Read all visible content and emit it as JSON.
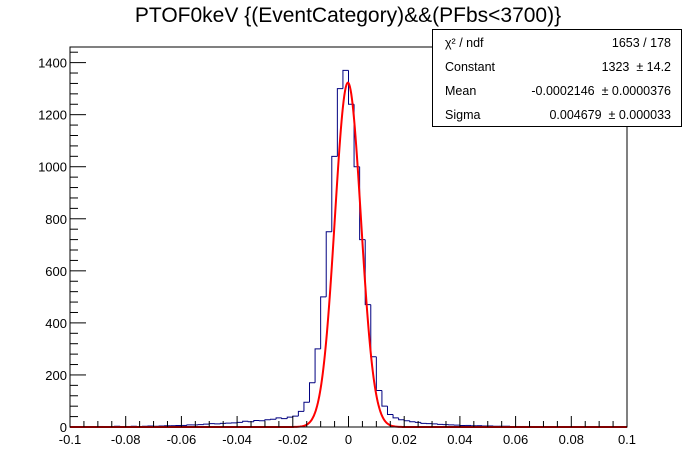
{
  "chart_data": {
    "type": "histogram",
    "title": "PTOF0keV {(EventCategory)&&(PFbs<3700)}",
    "xlim": [
      -0.1,
      0.1
    ],
    "ylim": [
      0,
      1460
    ],
    "x_ticks": [
      "-0.1",
      "-0.08",
      "-0.06",
      "-0.04",
      "-0.02",
      "0",
      "0.02",
      "0.04",
      "0.06",
      "0.08",
      "0.1"
    ],
    "y_ticks": [
      "0",
      "200",
      "400",
      "600",
      "800",
      "1000",
      "1200",
      "1400"
    ],
    "histogram": {
      "color": "#000080",
      "bin_width": 0.002,
      "bin_low_edges": [
        -0.1,
        -0.098,
        -0.096,
        -0.094,
        -0.092,
        -0.09,
        -0.088,
        -0.086,
        -0.084,
        -0.082,
        -0.08,
        -0.078,
        -0.076,
        -0.074,
        -0.072,
        -0.07,
        -0.068,
        -0.066,
        -0.064,
        -0.062,
        -0.06,
        -0.058,
        -0.056,
        -0.054,
        -0.052,
        -0.05,
        -0.048,
        -0.046,
        -0.044,
        -0.042,
        -0.04,
        -0.038,
        -0.036,
        -0.034,
        -0.032,
        -0.03,
        -0.028,
        -0.026,
        -0.024,
        -0.022,
        -0.02,
        -0.018,
        -0.016,
        -0.014,
        -0.012,
        -0.01,
        -0.008,
        -0.006,
        -0.004,
        -0.002,
        0,
        0.002,
        0.004,
        0.006,
        0.008,
        0.01,
        0.012,
        0.014,
        0.016,
        0.018,
        0.02,
        0.022,
        0.024,
        0.026,
        0.028,
        0.03,
        0.032,
        0.034,
        0.036,
        0.038,
        0.04,
        0.042,
        0.044,
        0.046,
        0.048,
        0.05,
        0.052,
        0.054,
        0.056,
        0.058,
        0.06,
        0.062,
        0.064,
        0.066,
        0.068,
        0.07,
        0.072,
        0.074,
        0.076,
        0.078,
        0.08,
        0.082,
        0.084,
        0.086,
        0.088,
        0.09,
        0.092,
        0.094,
        0.096,
        0.098
      ],
      "counts": [
        2,
        1,
        2,
        1,
        2,
        2,
        1,
        2,
        3,
        2,
        2,
        3,
        2,
        3,
        4,
        3,
        4,
        5,
        5,
        6,
        6,
        8,
        8,
        9,
        11,
        13,
        12,
        14,
        15,
        16,
        18,
        22,
        20,
        25,
        24,
        28,
        30,
        35,
        32,
        38,
        42,
        60,
        95,
        170,
        300,
        500,
        750,
        1040,
        1300,
        1370,
        1240,
        1000,
        720,
        470,
        270,
        140,
        80,
        48,
        35,
        28,
        24,
        20,
        18,
        14,
        13,
        12,
        10,
        9,
        8,
        7,
        6,
        6,
        5,
        5,
        4,
        4,
        3,
        3,
        3,
        2,
        2,
        2,
        2,
        1,
        2,
        1,
        1,
        2,
        1,
        1,
        1,
        1,
        2,
        1,
        1,
        1,
        1,
        1,
        1,
        1
      ]
    },
    "fit": {
      "color": "#ff0000",
      "constant": 1323,
      "mean": -0.0002146,
      "sigma": 0.004679
    },
    "stats_box": {
      "rows": [
        {
          "name": "χ² / ndf",
          "value": "1653 / 178"
        },
        {
          "name": "Constant",
          "value": "1323  ± 14.2"
        },
        {
          "name": "Mean",
          "value": "-0.0002146  ± 0.0000376"
        },
        {
          "name": "Sigma",
          "value": "0.004679  ± 0.000033"
        }
      ]
    }
  }
}
